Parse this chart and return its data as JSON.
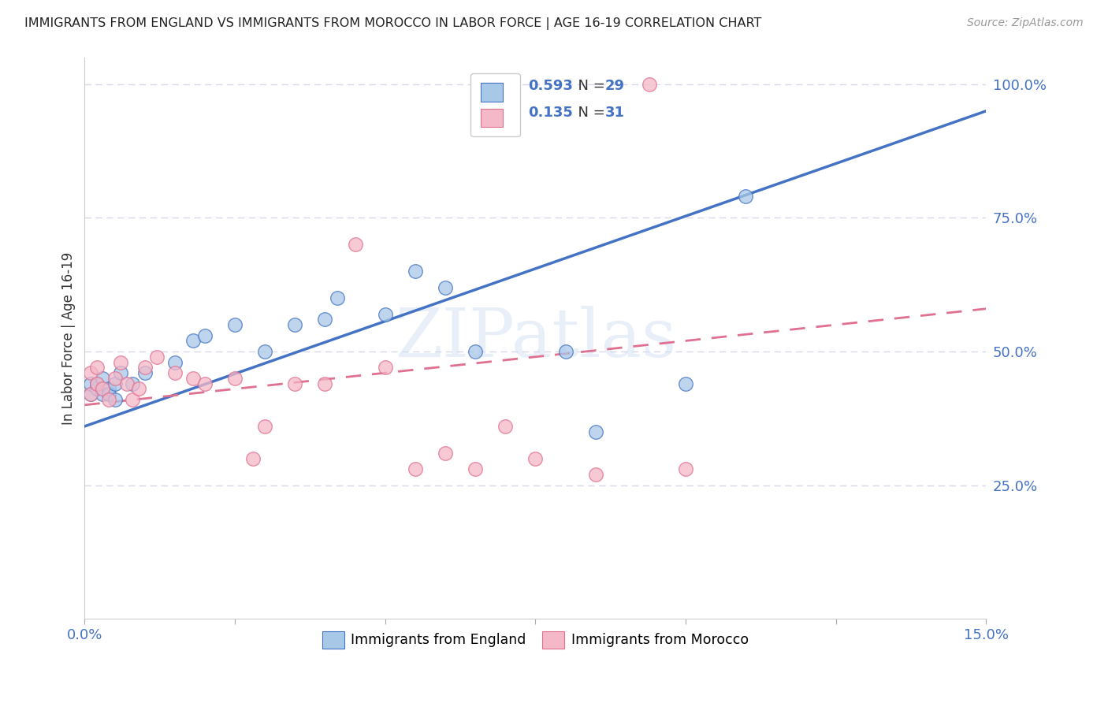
{
  "title": "IMMIGRANTS FROM ENGLAND VS IMMIGRANTS FROM MOROCCO IN LABOR FORCE | AGE 16-19 CORRELATION CHART",
  "source": "Source: ZipAtlas.com",
  "ylabel": "In Labor Force | Age 16-19",
  "xlim": [
    0.0,
    0.15
  ],
  "ylim": [
    0.0,
    1.05
  ],
  "ytick_right_labels": [
    "25.0%",
    "50.0%",
    "75.0%",
    "100.0%"
  ],
  "ytick_right_values": [
    0.25,
    0.5,
    0.75,
    1.0
  ],
  "watermark": "ZIPatlas",
  "england_scatter_color": "#a8c8e8",
  "morocco_scatter_color": "#f4b8c8",
  "england_line_color": "#4472c4",
  "morocco_line_color": "#e07090",
  "england_x": [
    0.001,
    0.001,
    0.002,
    0.002,
    0.003,
    0.003,
    0.004,
    0.004,
    0.005,
    0.005,
    0.006,
    0.008,
    0.01,
    0.015,
    0.018,
    0.02,
    0.025,
    0.03,
    0.035,
    0.04,
    0.042,
    0.05,
    0.055,
    0.06,
    0.065,
    0.08,
    0.085,
    0.1,
    0.11
  ],
  "england_y": [
    0.42,
    0.44,
    0.43,
    0.44,
    0.42,
    0.45,
    0.43,
    0.42,
    0.41,
    0.44,
    0.46,
    0.44,
    0.46,
    0.48,
    0.52,
    0.53,
    0.55,
    0.5,
    0.55,
    0.56,
    0.6,
    0.57,
    0.65,
    0.62,
    0.5,
    0.5,
    0.35,
    0.44,
    0.79
  ],
  "morocco_x": [
    0.001,
    0.001,
    0.002,
    0.002,
    0.003,
    0.004,
    0.005,
    0.006,
    0.007,
    0.008,
    0.009,
    0.01,
    0.012,
    0.015,
    0.018,
    0.02,
    0.025,
    0.028,
    0.03,
    0.035,
    0.04,
    0.045,
    0.05,
    0.055,
    0.06,
    0.065,
    0.07,
    0.075,
    0.085,
    0.1,
    0.094
  ],
  "morocco_y": [
    0.42,
    0.46,
    0.44,
    0.47,
    0.43,
    0.41,
    0.45,
    0.48,
    0.44,
    0.41,
    0.43,
    0.47,
    0.49,
    0.46,
    0.45,
    0.44,
    0.45,
    0.3,
    0.36,
    0.44,
    0.44,
    0.7,
    0.47,
    0.28,
    0.31,
    0.28,
    0.36,
    0.3,
    0.27,
    0.28,
    1.0
  ],
  "england_line_x0": 0.0,
  "england_line_y0": 0.36,
  "england_line_x1": 0.15,
  "england_line_y1": 0.95,
  "morocco_line_x0": 0.0,
  "morocco_line_y0": 0.4,
  "morocco_line_x1": 0.15,
  "morocco_line_y1": 0.58,
  "background_color": "#ffffff",
  "grid_color": "#d8d8e8"
}
